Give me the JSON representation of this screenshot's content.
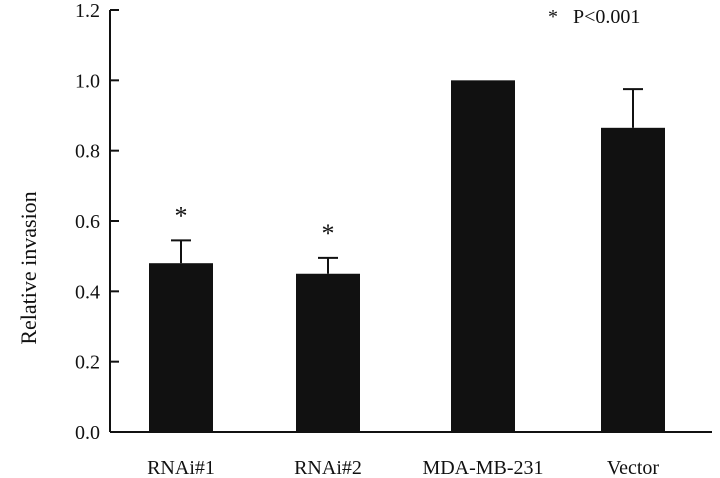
{
  "chart_data": {
    "type": "bar",
    "categories": [
      "RNAi#1",
      "RNAi#2",
      "MDA-MB-231",
      "Vector"
    ],
    "values": [
      0.48,
      0.45,
      1.0,
      0.865
    ],
    "error_upper": [
      0.545,
      0.495,
      null,
      0.975
    ],
    "significance": [
      "*",
      "*",
      "",
      ""
    ],
    "title": "",
    "xlabel": "",
    "ylabel": "Relative invasion",
    "ylim": [
      0,
      1.2
    ],
    "yticks": [
      "0.0",
      "0.2",
      "0.4",
      "0.6",
      "0.8",
      "1.0",
      "1.2"
    ],
    "annotation": "*   P<0.001",
    "grid": false,
    "bar_color": "#111111"
  }
}
